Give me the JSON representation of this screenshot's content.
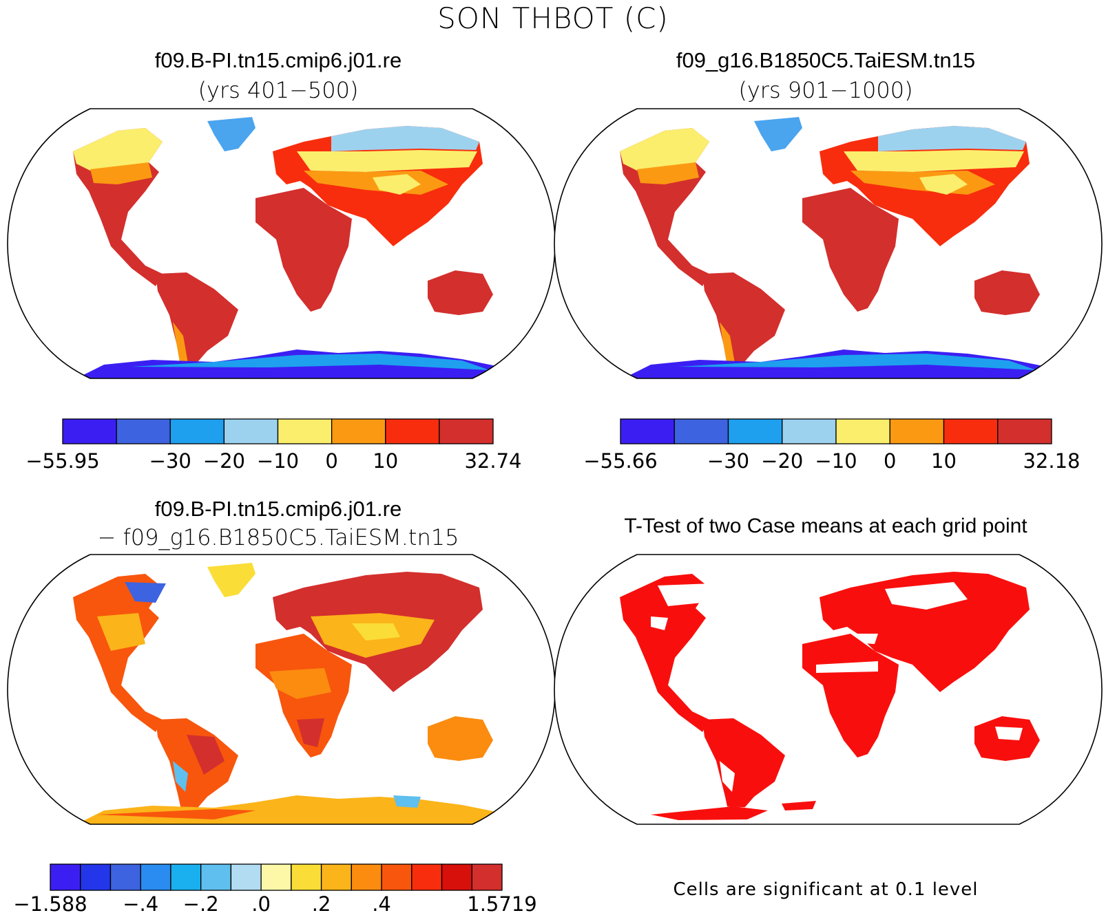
{
  "figure": {
    "title": "SON THBOT (C)"
  },
  "panels": [
    {
      "id": "case1",
      "title": "f09.B-PI.tn15.cmip6.j01.re",
      "subtitle": "(yrs 401−500)",
      "colorbar": {
        "colors": [
          "#3b1ff2",
          "#3d63e0",
          "#1ea0ef",
          "#9dd2ef",
          "#fbee6c",
          "#fb9a12",
          "#f82d0d",
          "#d32f2d"
        ],
        "labels": [
          "−55.95",
          "−30",
          "−20",
          "−10",
          "0",
          "10",
          "32.74"
        ],
        "label_positions": [
          0,
          2,
          3,
          4,
          5,
          6,
          8
        ]
      }
    },
    {
      "id": "case2",
      "title": "f09_g16.B1850C5.TaiESM.tn15",
      "subtitle": "(yrs 901−1000)",
      "colorbar": {
        "colors": [
          "#3b1ff2",
          "#3d63e0",
          "#1ea0ef",
          "#9dd2ef",
          "#fbee6c",
          "#fb9a12",
          "#f82d0d",
          "#d32f2d"
        ],
        "labels": [
          "−55.66",
          "−30",
          "−20",
          "−10",
          "0",
          "10",
          "32.18"
        ],
        "label_positions": [
          0,
          2,
          3,
          4,
          5,
          6,
          8
        ]
      }
    },
    {
      "id": "difference",
      "title": "f09.B-PI.tn15.cmip6.j01.re",
      "subtitle": "− f09_g16.B1850C5.TaiESM.tn15",
      "colorbar": {
        "colors": [
          "#3b1ff2",
          "#2336ea",
          "#3d63e0",
          "#2a8cf0",
          "#1ab0ef",
          "#5fbfee",
          "#b1dcf2",
          "#fdf8a8",
          "#fbdd38",
          "#fbb419",
          "#fb8c10",
          "#f8560d",
          "#f82d0d",
          "#d8100c",
          "#d32f2d"
        ],
        "labels": [
          "−1.588",
          "−.4",
          "−.2",
          ".0",
          ".2",
          ".4",
          "1.5719"
        ],
        "label_positions": [
          0,
          3,
          5,
          7,
          9,
          11,
          15
        ]
      }
    },
    {
      "id": "ttest",
      "title": "T-Test of two Case means at each grid point",
      "note": "Cells are significant at 0.1 level",
      "fill_color": "#f80f0d"
    }
  ]
}
